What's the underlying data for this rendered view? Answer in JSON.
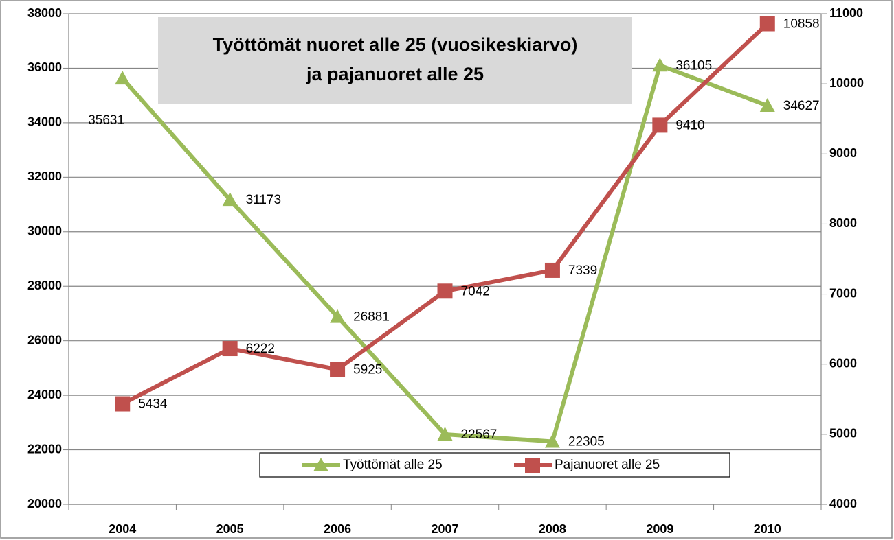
{
  "chart_data": {
    "type": "line",
    "title": [
      "Työttömät nuoret alle 25 (vuosikeskiarvo)",
      "ja pajanuoret alle 25"
    ],
    "categories": [
      "2004",
      "2005",
      "2006",
      "2007",
      "2008",
      "2009",
      "2010"
    ],
    "series": [
      {
        "name": "Työttömät alle 25",
        "color": "#9bbb59",
        "marker": "triangle",
        "values": [
          35631,
          31173,
          26881,
          22567,
          22305,
          36105,
          34627
        ]
      },
      {
        "name": "Pajanuoret alle 25",
        "color": "#c0504d",
        "marker": "square",
        "axis": "y2",
        "values": [
          5434,
          6222,
          5925,
          7042,
          7339,
          9410,
          10858
        ]
      }
    ],
    "ylim": [
      20000,
      38000
    ],
    "yticks": [
      20000,
      22000,
      24000,
      26000,
      28000,
      30000,
      32000,
      34000,
      36000,
      38000
    ],
    "y2lim": [
      4000,
      11000
    ],
    "y2ticks": [
      4000,
      5000,
      6000,
      7000,
      8000,
      9000,
      10000,
      11000
    ],
    "grid": true,
    "legend": "bottom"
  }
}
